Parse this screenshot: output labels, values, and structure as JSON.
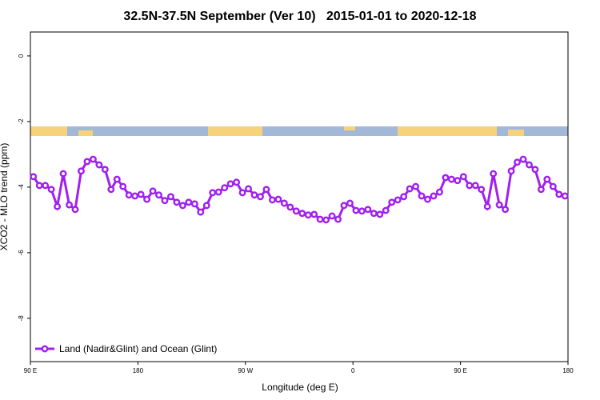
{
  "chart_data": {
    "type": "line",
    "title": "32.5N-37.5N September (Ver 10)   2015-01-01 to 2020-12-18",
    "x_label": "Longitude (deg E)",
    "y_label": "XCO2 - MLO trend (ppm)",
    "xlim": [
      90,
      540
    ],
    "xticks": [
      {
        "value": 90,
        "label": "90 E"
      },
      180,
      {
        "value": 270,
        "label": "90 W"
      },
      {
        "value": 360,
        "label": "0"
      },
      {
        "value": 450,
        "label": "90 E"
      },
      {
        "value": 540,
        "label": "180"
      }
    ],
    "ylim": [
      -9.32,
      0.73
    ],
    "yticks": [
      0,
      -2,
      -4,
      -6,
      -8
    ],
    "legend_position": "bottom left",
    "x": [
      92.5,
      97.5,
      102.5,
      107.5,
      112.5,
      117.5,
      122.5,
      127.5,
      132.5,
      137.5,
      142.5,
      147.5,
      152.5,
      157.5,
      162.5,
      167.5,
      172.5,
      177.5,
      182.5,
      187.5,
      192.5,
      197.5,
      202.5,
      207.5,
      212.5,
      217.5,
      222.5,
      227.5,
      232.5,
      237.5,
      242.5,
      247.5,
      252.5,
      257.5,
      262.5,
      267.5,
      272.5,
      277.5,
      282.5,
      287.5,
      292.5,
      297.5,
      302.5,
      307.5,
      312.5,
      317.5,
      322.5,
      327.5,
      332.5,
      337.5,
      342.5,
      347.5,
      352.5,
      357.5,
      362.5,
      367.5,
      372.5,
      377.5,
      382.5,
      387.5,
      392.5,
      397.5,
      402.5,
      407.5,
      412.5,
      417.5,
      422.5,
      427.5,
      432.5,
      437.5,
      442.5,
      447.5,
      452.5,
      457.5,
      462.5,
      467.5,
      472.5,
      477.5,
      482.5,
      487.5,
      492.5,
      497.5,
      502.5,
      507.5,
      512.5,
      517.5,
      522.5,
      527.5,
      532.5,
      537.5
    ],
    "series": [
      {
        "name": "Land (Nadir&Glint) and Ocean (Glint)",
        "color": "#a020f0",
        "values": [
          -3.68,
          -3.95,
          -3.95,
          -4.07,
          -4.59,
          -3.59,
          -4.54,
          -4.68,
          -3.51,
          -3.22,
          -3.15,
          -3.32,
          -3.46,
          -4.07,
          -3.76,
          -3.98,
          -4.24,
          -4.27,
          -4.22,
          -4.37,
          -4.12,
          -4.24,
          -4.41,
          -4.29,
          -4.46,
          -4.56,
          -4.46,
          -4.51,
          -4.76,
          -4.56,
          -4.17,
          -4.15,
          -4.02,
          -3.9,
          -3.85,
          -4.17,
          -4.05,
          -4.24,
          -4.29,
          -4.07,
          -4.39,
          -4.37,
          -4.49,
          -4.61,
          -4.73,
          -4.8,
          -4.85,
          -4.83,
          -4.98,
          -5.0,
          -4.88,
          -4.98,
          -4.56,
          -4.49,
          -4.71,
          -4.73,
          -4.68,
          -4.8,
          -4.83,
          -4.71,
          -4.46,
          -4.39,
          -4.29,
          -4.05,
          -3.98,
          -4.27,
          -4.37,
          -4.27,
          -4.15,
          -3.71,
          -3.76,
          -3.8,
          -3.68,
          -3.95,
          -3.95,
          -4.07,
          -4.59,
          -3.59,
          -4.54,
          -4.68,
          -3.51,
          -3.24,
          -3.15,
          -3.32,
          -3.46,
          -4.07,
          -3.76,
          -3.98,
          -4.22,
          -4.27
        ]
      }
    ]
  }
}
